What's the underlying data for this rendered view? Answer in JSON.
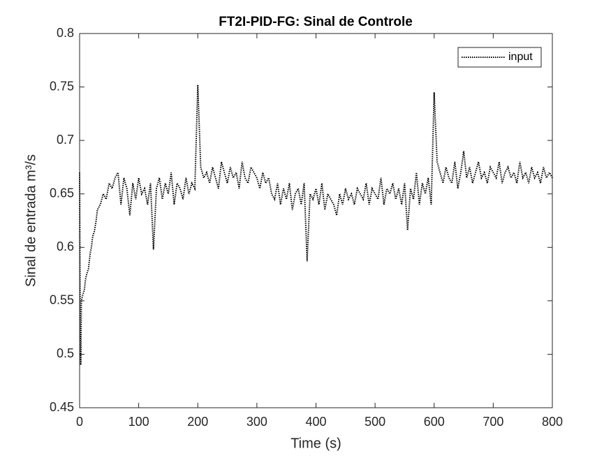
{
  "chart_data": {
    "type": "line",
    "title": "FT2I-PID-FG: Sinal de Controle",
    "xlabel": "Time (s)",
    "ylabel": "Sinal de entrada m³/s",
    "legend": "top-right",
    "xlim": [
      0,
      800
    ],
    "ylim": [
      0.45,
      0.8
    ],
    "xticks": [
      0,
      100,
      200,
      300,
      400,
      500,
      600,
      700,
      800
    ],
    "yticks": [
      0.45,
      0.5,
      0.55,
      0.6,
      0.65,
      0.7,
      0.75,
      0.8
    ],
    "x": [
      0,
      1,
      2,
      3,
      5,
      8,
      10,
      12,
      15,
      18,
      20,
      22,
      25,
      28,
      30,
      35,
      40,
      45,
      50,
      55,
      60,
      65,
      70,
      75,
      80,
      85,
      90,
      95,
      100,
      105,
      110,
      115,
      120,
      125,
      130,
      135,
      140,
      145,
      150,
      155,
      160,
      165,
      170,
      175,
      180,
      185,
      190,
      195,
      200,
      205,
      210,
      215,
      220,
      225,
      230,
      235,
      240,
      245,
      250,
      255,
      260,
      265,
      270,
      275,
      280,
      285,
      290,
      295,
      300,
      305,
      310,
      315,
      320,
      325,
      330,
      335,
      340,
      345,
      350,
      355,
      360,
      365,
      370,
      375,
      380,
      385,
      390,
      395,
      400,
      405,
      410,
      415,
      420,
      425,
      430,
      435,
      440,
      445,
      450,
      455,
      460,
      465,
      470,
      475,
      480,
      485,
      490,
      495,
      500,
      505,
      510,
      515,
      520,
      525,
      530,
      535,
      540,
      545,
      550,
      555,
      560,
      565,
      570,
      575,
      580,
      585,
      590,
      595,
      600,
      605,
      610,
      615,
      620,
      625,
      630,
      635,
      640,
      645,
      650,
      655,
      660,
      665,
      670,
      675,
      680,
      685,
      690,
      695,
      700,
      705,
      710,
      715,
      720,
      725,
      730,
      735,
      740,
      745,
      750,
      755,
      760,
      765,
      770,
      775,
      780,
      785,
      790,
      795,
      800
    ],
    "series": [
      {
        "name": "input",
        "color": "#000000",
        "values": [
          0.67,
          0.52,
          0.49,
          0.55,
          0.555,
          0.56,
          0.57,
          0.575,
          0.58,
          0.595,
          0.6,
          0.61,
          0.615,
          0.625,
          0.635,
          0.64,
          0.65,
          0.645,
          0.66,
          0.655,
          0.665,
          0.67,
          0.64,
          0.665,
          0.655,
          0.63,
          0.66,
          0.645,
          0.665,
          0.65,
          0.655,
          0.64,
          0.66,
          0.598,
          0.655,
          0.665,
          0.645,
          0.66,
          0.65,
          0.67,
          0.64,
          0.66,
          0.655,
          0.645,
          0.665,
          0.65,
          0.66,
          0.655,
          0.752,
          0.675,
          0.665,
          0.67,
          0.66,
          0.675,
          0.665,
          0.655,
          0.68,
          0.67,
          0.66,
          0.675,
          0.665,
          0.67,
          0.655,
          0.68,
          0.665,
          0.66,
          0.675,
          0.67,
          0.665,
          0.655,
          0.67,
          0.66,
          0.665,
          0.65,
          0.645,
          0.66,
          0.64,
          0.655,
          0.645,
          0.66,
          0.635,
          0.65,
          0.655,
          0.64,
          0.66,
          0.587,
          0.65,
          0.645,
          0.655,
          0.64,
          0.66,
          0.635,
          0.65,
          0.645,
          0.64,
          0.63,
          0.65,
          0.64,
          0.655,
          0.645,
          0.65,
          0.64,
          0.655,
          0.65,
          0.645,
          0.66,
          0.64,
          0.655,
          0.65,
          0.645,
          0.665,
          0.64,
          0.655,
          0.65,
          0.66,
          0.645,
          0.655,
          0.64,
          0.66,
          0.616,
          0.655,
          0.645,
          0.67,
          0.64,
          0.66,
          0.65,
          0.665,
          0.64,
          0.745,
          0.68,
          0.67,
          0.66,
          0.675,
          0.665,
          0.66,
          0.68,
          0.655,
          0.67,
          0.69,
          0.665,
          0.675,
          0.66,
          0.67,
          0.68,
          0.665,
          0.67,
          0.66,
          0.675,
          0.67,
          0.665,
          0.68,
          0.66,
          0.67,
          0.675,
          0.665,
          0.67,
          0.66,
          0.68,
          0.665,
          0.67,
          0.66,
          0.675,
          0.665,
          0.67,
          0.66,
          0.675,
          0.665,
          0.67,
          0.665
        ]
      }
    ]
  }
}
